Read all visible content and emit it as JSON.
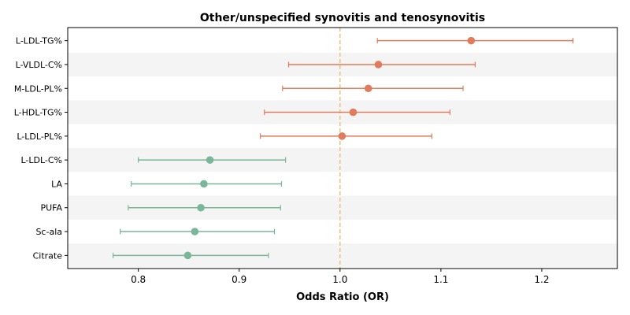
{
  "chart_data": {
    "type": "forest",
    "title": "Other/unspecified synovitis and tenosynovitis",
    "xlabel": "Odds Ratio (OR)",
    "ylabel": "",
    "xlim": [
      0.73,
      1.275
    ],
    "xticks": [
      0.8,
      0.9,
      1.0,
      1.1,
      1.2
    ],
    "xtick_labels": [
      "0.8",
      "0.9",
      "1.0",
      "1.1",
      "1.2"
    ],
    "reference_line": 1.0,
    "grid": false,
    "band_color": "#f4f4f4",
    "reference_color": "#f0c080",
    "items": [
      {
        "label": "L-LDL-TG%",
        "or": 1.13,
        "lower": 1.037,
        "upper": 1.231,
        "color": "#e07b5b"
      },
      {
        "label": "L-VLDL-C%",
        "or": 1.038,
        "lower": 0.949,
        "upper": 1.134,
        "color": "#e07b5b"
      },
      {
        "label": "M-LDL-PL%",
        "or": 1.028,
        "lower": 0.943,
        "upper": 1.122,
        "color": "#e07b5b"
      },
      {
        "label": "L-HDL-TG%",
        "or": 1.013,
        "lower": 0.925,
        "upper": 1.109,
        "color": "#e07b5b"
      },
      {
        "label": "L-LDL-PL%",
        "or": 1.002,
        "lower": 0.921,
        "upper": 1.091,
        "color": "#e07b5b"
      },
      {
        "label": "L-LDL-C%",
        "or": 0.871,
        "lower": 0.8,
        "upper": 0.946,
        "color": "#7ab69a"
      },
      {
        "label": "LA",
        "or": 0.865,
        "lower": 0.793,
        "upper": 0.942,
        "color": "#7ab69a"
      },
      {
        "label": "PUFA",
        "or": 0.862,
        "lower": 0.79,
        "upper": 0.941,
        "color": "#7ab69a"
      },
      {
        "label": "Sc-ala",
        "or": 0.856,
        "lower": 0.782,
        "upper": 0.935,
        "color": "#7ab69a"
      },
      {
        "label": "Citrate",
        "or": 0.849,
        "lower": 0.775,
        "upper": 0.929,
        "color": "#7ab69a"
      }
    ]
  }
}
